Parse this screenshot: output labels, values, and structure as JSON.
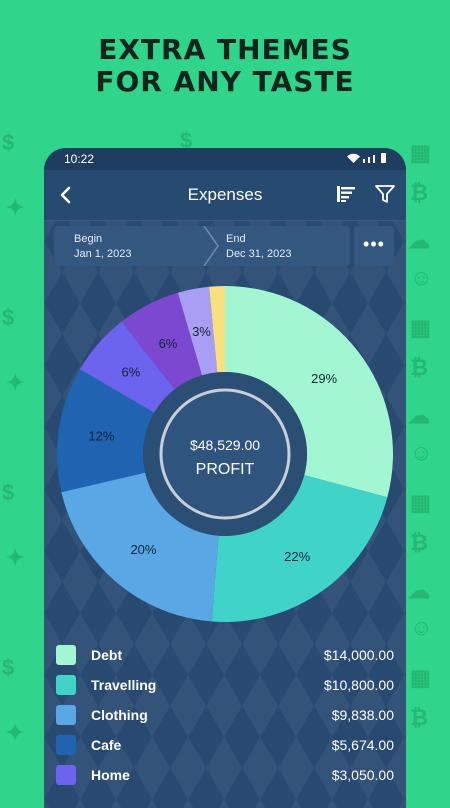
{
  "headline": {
    "line1": "EXTRA THEMES",
    "line2": "FOR ANY TASTE"
  },
  "status_bar": {
    "time": "10:22"
  },
  "app_bar": {
    "title": "Expenses"
  },
  "date_range": {
    "begin_label": "Begin",
    "begin_value": "Jan 1, 2023",
    "end_label": "End",
    "end_value": "Dec 31, 2023"
  },
  "more_button": {
    "label": "•••"
  },
  "chart_data": {
    "type": "pie",
    "center_value": "$48,529.00",
    "center_label": "PROFIT",
    "slices": [
      {
        "category": "Debt",
        "label": "29%",
        "value": 29,
        "color": "#a2f7d2"
      },
      {
        "category": "Travelling",
        "label": "22%",
        "value": 22,
        "color": "#40d4c8"
      },
      {
        "category": "Clothing",
        "label": "20%",
        "value": 20,
        "color": "#5aa7e6"
      },
      {
        "category": "Cafe",
        "label": "12%",
        "value": 12,
        "color": "#1f64b0"
      },
      {
        "category": "Home",
        "label": "6%",
        "value": 6,
        "color": "#6c64ee"
      },
      {
        "category": "",
        "label": "6%",
        "value": 6,
        "color": "#7d48d0"
      },
      {
        "category": "",
        "label": "3%",
        "value": 3,
        "color": "#a99ff2"
      },
      {
        "category": "",
        "label": "",
        "value": 1.5,
        "color": "#f9e07f"
      }
    ]
  },
  "legend": [
    {
      "label": "Debt",
      "amount": "$14,000.00",
      "color": "#a2f7d2"
    },
    {
      "label": "Travelling",
      "amount": "$10,800.00",
      "color": "#40d4c8"
    },
    {
      "label": "Clothing",
      "amount": "$9,838.00",
      "color": "#5aa7e6"
    },
    {
      "label": "Cafe",
      "amount": "$5,674.00",
      "color": "#1f64b0"
    },
    {
      "label": "Home",
      "amount": "$3,050.00",
      "color": "#6c64ee"
    }
  ],
  "colors": {
    "background": "#2ed58a",
    "phone": "#284a71",
    "accent_text": "#13241d"
  }
}
